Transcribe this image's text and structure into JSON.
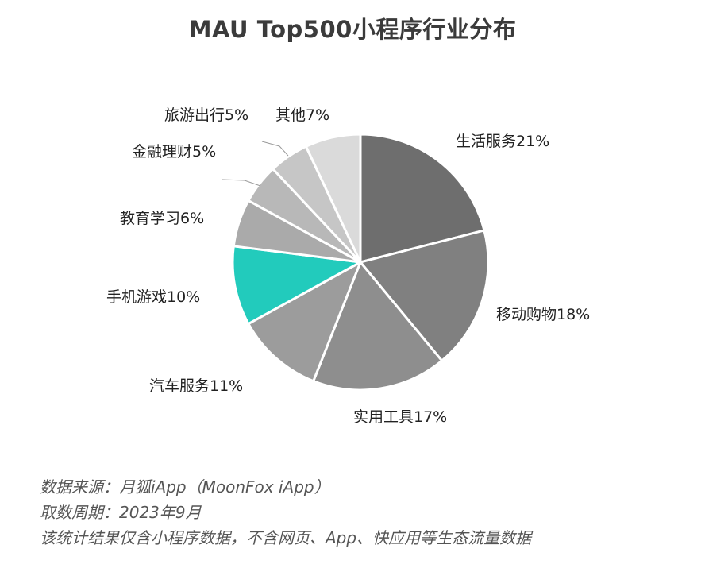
{
  "chart_data": {
    "type": "pie",
    "title": "MAU Top500小程序行业分布",
    "slices": [
      {
        "label": "生活服务21%",
        "value": 21,
        "color": "#6e6e6e"
      },
      {
        "label": "移动购物18%",
        "value": 18,
        "color": "#808080"
      },
      {
        "label": "实用工具17%",
        "value": 17,
        "color": "#8e8e8e"
      },
      {
        "label": "汽车服务11%",
        "value": 11,
        "color": "#9c9c9c"
      },
      {
        "label": "手机游戏10%",
        "value": 10,
        "color": "#22cbbc"
      },
      {
        "label": "教育学习6%",
        "value": 6,
        "color": "#aaaaaa"
      },
      {
        "label": "金融理财5%",
        "value": 5,
        "color": "#b8b8b8"
      },
      {
        "label": "旅游出行5%",
        "value": 5,
        "color": "#c6c6c6"
      },
      {
        "label": "其他7%",
        "value": 7,
        "color": "#dadada"
      }
    ],
    "legend": "none"
  },
  "footnotes": {
    "source": "数据来源：月狐iApp（MoonFox iApp）",
    "period": "取数周期：2023年9月",
    "note": "该统计结果仅含小程序数据，不含网页、App、快应用等生态流量数据"
  }
}
